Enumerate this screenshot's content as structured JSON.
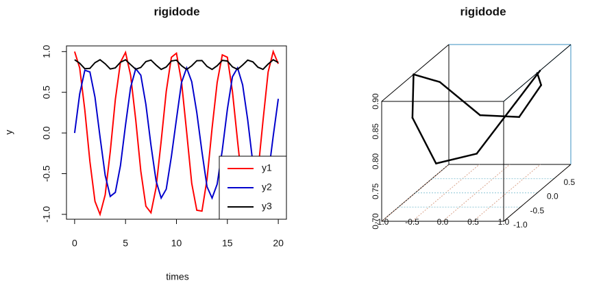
{
  "chart_data": [
    {
      "type": "line",
      "title": "rigidode",
      "xlabel": "times",
      "ylabel": "y",
      "x": [
        0,
        0.5,
        1,
        1.5,
        2,
        2.5,
        3,
        3.5,
        4,
        4.5,
        5,
        5.5,
        6,
        6.5,
        7,
        7.5,
        8,
        8.5,
        9,
        9.5,
        10,
        10.5,
        11,
        11.5,
        12,
        12.5,
        13,
        13.5,
        14,
        14.5,
        15,
        15.5,
        16,
        16.5,
        17,
        17.5,
        18,
        18.5,
        19,
        19.5,
        20
      ],
      "series": [
        {
          "name": "y1",
          "color": "#ff0000",
          "values": [
            1.0,
            0.8,
            0.28,
            -0.35,
            -0.84,
            -1.0,
            -0.76,
            -0.23,
            0.41,
            0.87,
            0.99,
            0.71,
            0.16,
            -0.47,
            -0.9,
            -0.98,
            -0.67,
            -0.1,
            0.51,
            0.93,
            0.98,
            0.63,
            0.01,
            -0.62,
            -0.95,
            -0.96,
            -0.57,
            0.06,
            0.62,
            0.96,
            0.93,
            0.51,
            -0.1,
            -0.68,
            -0.98,
            -0.89,
            -0.48,
            0.15,
            0.75,
            1.0,
            0.85
          ]
        },
        {
          "name": "y2",
          "color": "#0000cc",
          "values": [
            0,
            0.48,
            0.77,
            0.75,
            0.44,
            -0.05,
            -0.52,
            -0.78,
            -0.73,
            -0.4,
            0.1,
            0.56,
            0.79,
            0.71,
            0.35,
            -0.15,
            -0.59,
            -0.8,
            -0.69,
            -0.29,
            0.17,
            0.62,
            0.8,
            0.63,
            0.25,
            -0.23,
            -0.66,
            -0.8,
            -0.63,
            -0.21,
            0.29,
            0.69,
            0.8,
            0.59,
            0.16,
            -0.37,
            -0.7,
            -0.79,
            -0.53,
            -0.04,
            0.42
          ]
        },
        {
          "name": "y3",
          "color": "#000000",
          "values": [
            0.9,
            0.857,
            0.79,
            0.794,
            0.864,
            0.9,
            0.85,
            0.786,
            0.8,
            0.87,
            0.899,
            0.84,
            0.783,
            0.806,
            0.877,
            0.896,
            0.834,
            0.781,
            0.811,
            0.885,
            0.895,
            0.827,
            0.78,
            0.826,
            0.888,
            0.89,
            0.818,
            0.781,
            0.826,
            0.892,
            0.884,
            0.812,
            0.781,
            0.835,
            0.895,
            0.874,
            0.808,
            0.782,
            0.847,
            0.9,
            0.866
          ]
        }
      ],
      "xlim": [
        -0.8,
        20.8
      ],
      "xticks": [
        0,
        5,
        10,
        15,
        20
      ],
      "ylim": [
        -1.06,
        1.07
      ],
      "yticks": [
        {
          "value": -1,
          "label": "-1.0"
        },
        {
          "value": -0.5,
          "label": "-0.5"
        },
        {
          "value": 0,
          "label": "0.0"
        },
        {
          "value": 0.5,
          "label": "0.5"
        },
        {
          "value": 1,
          "label": "1.0"
        }
      ],
      "legend": "bottom-right"
    },
    {
      "type": "line3d",
      "title": "rigidode",
      "color": "#000000",
      "x": [
        1.0,
        0.8,
        0.28,
        -0.35,
        -0.84,
        -1.0,
        -0.76,
        -0.23,
        0.41,
        0.87,
        0.99
      ],
      "y": [
        0,
        0.48,
        0.77,
        0.75,
        0.44,
        -0.05,
        -0.52,
        -0.78,
        -0.73,
        -0.4,
        0.1
      ],
      "z": [
        0.9,
        0.857,
        0.79,
        0.794,
        0.864,
        0.9,
        0.85,
        0.786,
        0.8,
        0.87,
        0.899
      ],
      "xlim": [
        -1,
        1
      ],
      "ylim": [
        -1,
        1
      ],
      "zlim": [
        0.7,
        0.9
      ],
      "xticks": [
        {
          "value": -1,
          "label": "-1.0"
        },
        {
          "value": -0.5,
          "label": "-0.5"
        },
        {
          "value": 0,
          "label": "0.0"
        },
        {
          "value": 0.5,
          "label": "0.5"
        },
        {
          "value": 1,
          "label": "1.0"
        }
      ],
      "yticks": [
        {
          "value": -1,
          "label": "-1.0"
        },
        {
          "value": -0.5,
          "label": "-0.5"
        },
        {
          "value": 0,
          "label": "0.0"
        },
        {
          "value": 0.5,
          "label": "0.5"
        }
      ],
      "zticks": [
        {
          "value": 0.7,
          "label": "0.70"
        },
        {
          "value": 0.75,
          "label": "0.75"
        },
        {
          "value": 0.8,
          "label": "0.80"
        },
        {
          "value": 0.85,
          "label": "0.85"
        },
        {
          "value": 0.9,
          "label": "0.90"
        }
      ]
    }
  ]
}
